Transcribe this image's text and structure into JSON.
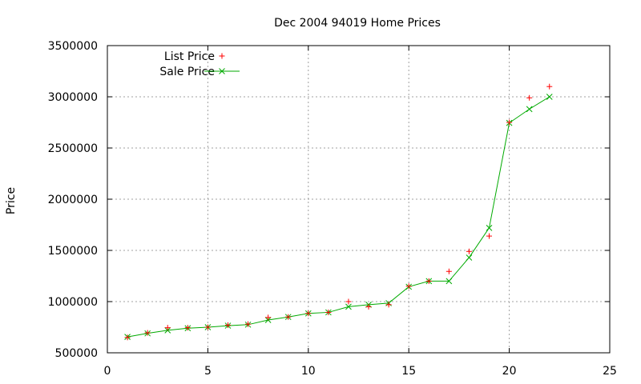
{
  "chart_data": {
    "type": "line",
    "title": "Dec 2004 94019 Home Prices",
    "xlabel": "",
    "ylabel": "Price",
    "xlim": [
      0,
      25
    ],
    "ylim": [
      500000,
      3500000
    ],
    "xticks": [
      0,
      5,
      10,
      15,
      20,
      25
    ],
    "yticks": [
      500000,
      1000000,
      1500000,
      2000000,
      2500000,
      3000000,
      3500000
    ],
    "grid": true,
    "legend_position": "top-left",
    "series": [
      {
        "name": "List Price",
        "style": "points",
        "marker": "plus",
        "color": "#ff0000",
        "x": [
          1,
          2,
          3,
          4,
          5,
          6,
          7,
          8,
          9,
          10,
          11,
          12,
          13,
          14,
          15,
          16,
          17,
          18,
          19,
          20,
          21,
          22
        ],
        "y": [
          650000,
          695000,
          745000,
          745000,
          750000,
          770000,
          780000,
          845000,
          850000,
          885000,
          895000,
          1000000,
          950000,
          970000,
          1150000,
          1200000,
          1295000,
          1490000,
          1640000,
          2750000,
          2990000,
          3100000
        ]
      },
      {
        "name": "Sale Price",
        "style": "linespoints",
        "marker": "cross",
        "color": "#00aa00",
        "x": [
          1,
          2,
          3,
          4,
          5,
          6,
          7,
          8,
          9,
          10,
          11,
          12,
          13,
          14,
          15,
          16,
          17,
          18,
          19,
          20,
          21,
          22
        ],
        "y": [
          655000,
          690000,
          720000,
          740000,
          750000,
          765000,
          775000,
          820000,
          850000,
          885000,
          895000,
          950000,
          970000,
          985000,
          1145000,
          1200000,
          1200000,
          1430000,
          1720000,
          2745000,
          2880000,
          3000000
        ]
      }
    ]
  }
}
